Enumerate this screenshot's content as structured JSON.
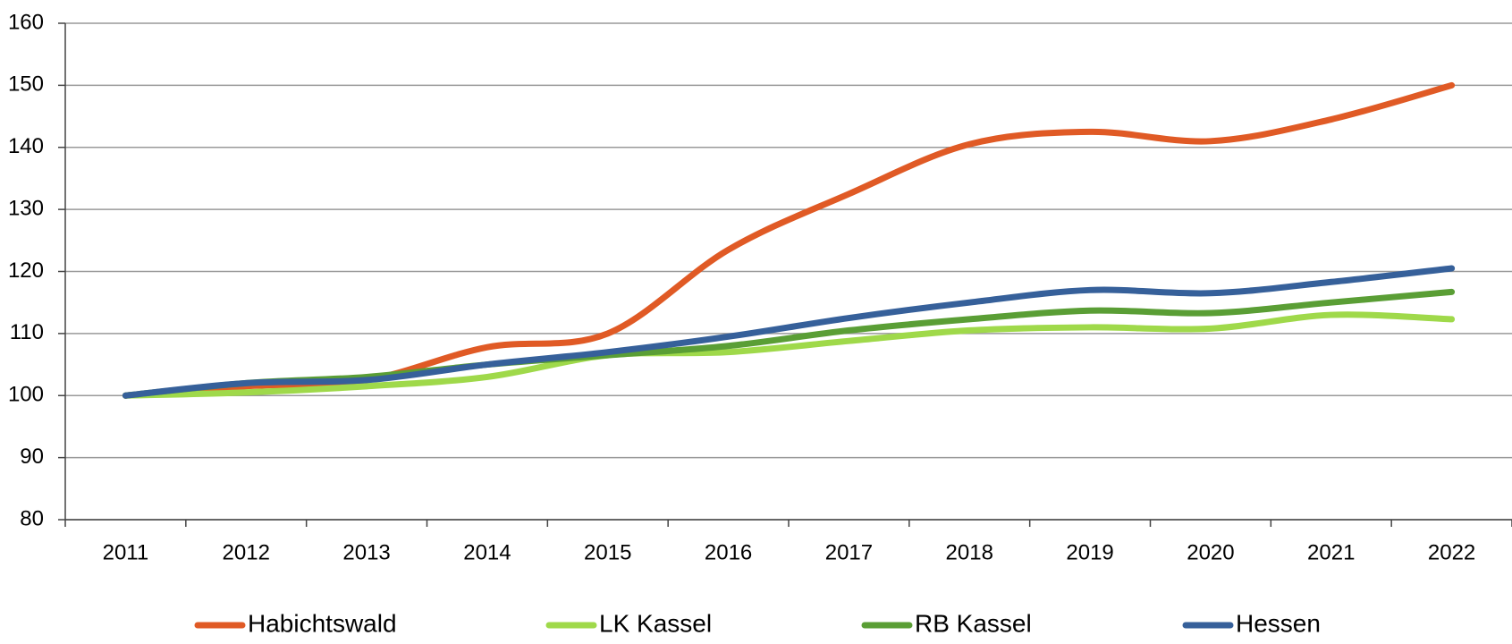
{
  "chart_data": {
    "type": "line",
    "categories": [
      "2011",
      "2012",
      "2013",
      "2014",
      "2015",
      "2016",
      "2017",
      "2018",
      "2019",
      "2020",
      "2021",
      "2022"
    ],
    "series": [
      {
        "name": "Habichtswald",
        "color": "#e05a25",
        "values": [
          100,
          101.5,
          102.5,
          107.8,
          110,
          123.5,
          132.5,
          140.5,
          142.5,
          141,
          144.5,
          150
        ]
      },
      {
        "name": "LK Kassel",
        "color": "#9fd94a",
        "values": [
          100,
          100.5,
          101.5,
          103,
          106.5,
          107,
          108.8,
          110.5,
          111,
          110.8,
          113,
          112.3
        ]
      },
      {
        "name": "RB Kassel",
        "color": "#5a9e35",
        "values": [
          100,
          102,
          103,
          105,
          106.5,
          108,
          110.5,
          112.3,
          113.7,
          113.3,
          115,
          116.7
        ]
      },
      {
        "name": "Hessen",
        "color": "#36609a",
        "values": [
          100,
          102,
          102.5,
          105,
          107,
          109.5,
          112.5,
          115,
          117,
          116.5,
          118.3,
          120.5
        ]
      }
    ],
    "ylim": [
      80,
      160
    ],
    "yticks": [
      80,
      90,
      100,
      110,
      120,
      130,
      140,
      150,
      160
    ],
    "grid": true
  }
}
